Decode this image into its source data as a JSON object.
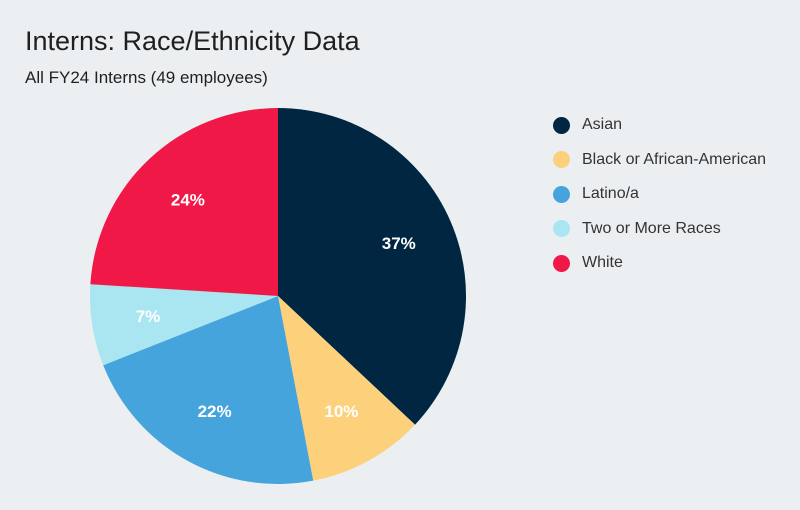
{
  "chart_data": {
    "type": "pie",
    "title": "Interns: Race/Ethnicity Data",
    "subtitle": "All FY24 Interns (49 employees)",
    "legend_position": "right",
    "slices": [
      {
        "label": "Asian",
        "value": 37,
        "display": "37%",
        "color": "#002641"
      },
      {
        "label": "Black or African-American",
        "value": 10,
        "display": "10%",
        "color": "#fdd17b"
      },
      {
        "label": "Latino/a",
        "value": 22,
        "display": "22%",
        "color": "#45a4dc"
      },
      {
        "label": "Two or More Races",
        "value": 7,
        "display": "7%",
        "color": "#a9e6f2"
      },
      {
        "label": "White",
        "value": 24,
        "display": "24%",
        "color": "#ef1847"
      }
    ]
  }
}
